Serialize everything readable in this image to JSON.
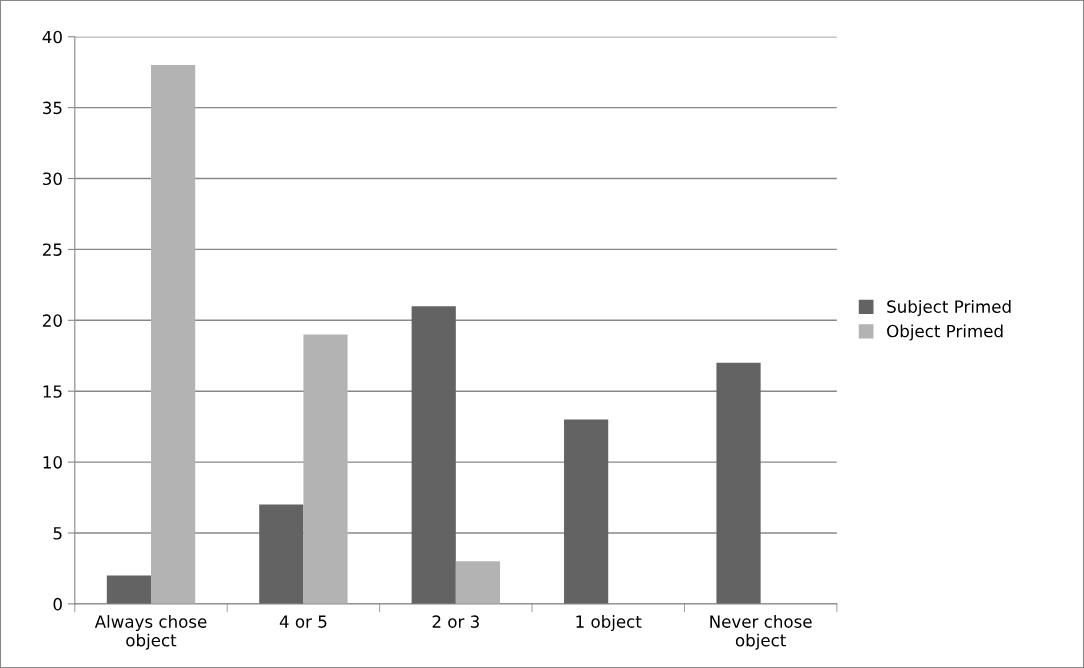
{
  "chart_data": {
    "type": "bar",
    "categories": [
      "Always chose object",
      "4 or 5",
      "2 or 3",
      "1 object",
      "Never chose object"
    ],
    "series": [
      {
        "name": "Subject Primed",
        "color": "#636363",
        "values": [
          2,
          7,
          21,
          13,
          17
        ]
      },
      {
        "name": "Object Primed",
        "color": "#b3b3b3",
        "values": [
          38,
          19,
          3,
          0,
          0
        ]
      }
    ],
    "ylim": [
      0,
      40
    ],
    "yticks": [
      0,
      5,
      10,
      15,
      20,
      25,
      30,
      35,
      40
    ],
    "grid": "y",
    "legend": "right"
  }
}
